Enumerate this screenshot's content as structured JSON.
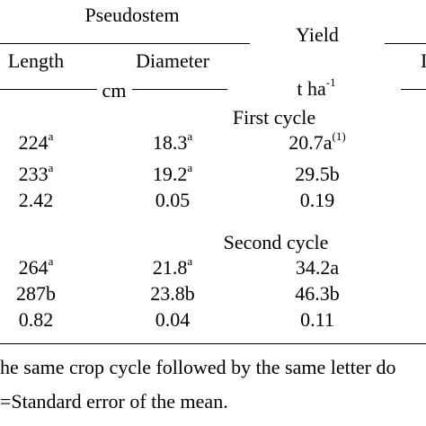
{
  "header": {
    "group_pseudostem": "Pseudostem",
    "group_yield": "Yield",
    "col_length": "Length",
    "col_diameter": "Diameter",
    "col_partial": "I"
  },
  "units": {
    "cm": "cm",
    "yield_unit": "t ha",
    "yield_unit_exp": "-1"
  },
  "first_cycle": {
    "label": "First cycle",
    "rows": [
      {
        "length": "224",
        "length_sup": "a",
        "diameter": "18.3",
        "diameter_sup": "a",
        "yield": "20.7a",
        "yield_sup": "(1)"
      },
      {
        "length": "233",
        "length_sup": "a",
        "diameter": "19.2",
        "diameter_sup": "a",
        "yield": "29.5b",
        "yield_sup": ""
      },
      {
        "length": "2.42",
        "length_sup": "",
        "diameter": "0.05",
        "diameter_sup": "",
        "yield": "0.19",
        "yield_sup": ""
      }
    ]
  },
  "second_cycle": {
    "label": "Second cycle",
    "rows": [
      {
        "length": "264",
        "length_sup": "a",
        "diameter": "21.8",
        "diameter_sup": "a",
        "yield": "34.2a",
        "yield_sup": ""
      },
      {
        "length": "287b",
        "length_sup": "",
        "diameter": "23.8b",
        "diameter_sup": "",
        "yield": "46.3b",
        "yield_sup": ""
      },
      {
        "length": "0.82",
        "length_sup": "",
        "diameter": "0.04",
        "diameter_sup": "",
        "yield": "0.11",
        "yield_sup": ""
      }
    ]
  },
  "footnotes": {
    "line1": "he same crop cycle followed by the same letter do",
    "line2": "=Standard error of the mean."
  }
}
